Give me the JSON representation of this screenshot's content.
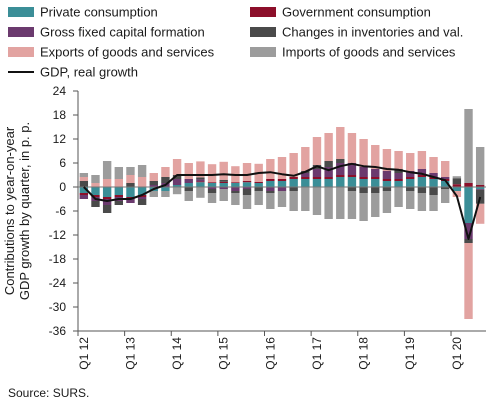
{
  "source_text": "Source: SURS.",
  "chart_data": {
    "type": "bar",
    "stacked": true,
    "ylabel_lines": [
      "Contributions to year-on-year",
      "GDP growth by quarter, in p. p."
    ],
    "xlabel": "",
    "ylim": [
      -36,
      24
    ],
    "yticks": [
      24,
      18,
      12,
      6,
      0,
      -6,
      -12,
      -18,
      -24,
      -30,
      -36
    ],
    "x_tick_labels": [
      {
        "label": "Q1 12",
        "index": 0
      },
      {
        "label": "Q1 13",
        "index": 4
      },
      {
        "label": "Q1 14",
        "index": 8
      },
      {
        "label": "Q1 15",
        "index": 12
      },
      {
        "label": "Q1 16",
        "index": 16
      },
      {
        "label": "Q1 17",
        "index": 20
      },
      {
        "label": "Q1 18",
        "index": 24
      },
      {
        "label": "Q1 19",
        "index": 28
      },
      {
        "label": "Q1 20",
        "index": 32
      }
    ],
    "categories": [
      "2012Q1",
      "2012Q2",
      "2012Q3",
      "2012Q4",
      "2013Q1",
      "2013Q2",
      "2013Q3",
      "2013Q4",
      "2014Q1",
      "2014Q2",
      "2014Q3",
      "2014Q4",
      "2015Q1",
      "2015Q2",
      "2015Q3",
      "2015Q4",
      "2016Q1",
      "2016Q2",
      "2016Q3",
      "2016Q4",
      "2017Q1",
      "2017Q2",
      "2017Q3",
      "2017Q4",
      "2018Q1",
      "2018Q2",
      "2018Q3",
      "2018Q4",
      "2019Q1",
      "2019Q2",
      "2019Q3",
      "2019Q4",
      "2020Q1",
      "2020Q2",
      "2020Q3"
    ],
    "legend_position": "top",
    "series": [
      {
        "name": "Private consumption",
        "color": "#3b8e97",
        "values": [
          -1.5,
          -2,
          -2.5,
          -2,
          -2.5,
          -2,
          -1,
          -1,
          0.5,
          1,
          1.2,
          1,
          1,
          1,
          1.2,
          1,
          1.5,
          1.5,
          2,
          2,
          2,
          2,
          2.5,
          2.5,
          2,
          2,
          1.5,
          1.5,
          2,
          2.5,
          2,
          1.5,
          -1,
          -9,
          -0.5
        ]
      },
      {
        "name": "Government consumption",
        "color": "#8c0f2a",
        "values": [
          -0.5,
          -0.5,
          -0.5,
          -0.5,
          -0.5,
          -0.5,
          0,
          0,
          0,
          0,
          0.2,
          0.2,
          0.3,
          0.2,
          0.3,
          0.3,
          0.5,
          0.5,
          0.5,
          0.5,
          0.5,
          0.5,
          0.5,
          0.5,
          0.5,
          0.5,
          0.5,
          0.5,
          0.5,
          0.5,
          0.5,
          0.5,
          0.7,
          1,
          0.5
        ]
      },
      {
        "name": "Gross fixed capital formation",
        "color": "#6b3a6e",
        "values": [
          -1,
          -1,
          -1.5,
          -1,
          -1,
          -0.5,
          0.5,
          1,
          1.5,
          1,
          0.5,
          -0.5,
          -0.5,
          -1,
          -0.5,
          0,
          -1,
          -1,
          0,
          1,
          2,
          2.5,
          3,
          3,
          2.5,
          2,
          2,
          1.5,
          1.5,
          1.5,
          1,
          0.5,
          0,
          -4,
          -0.2
        ]
      },
      {
        "name": "Changes in inventories and val.",
        "color": "#4a4a4a",
        "values": [
          1.5,
          -1.5,
          -2,
          -1,
          1,
          -1.5,
          1,
          1.5,
          1,
          -1,
          0.5,
          -1,
          0.5,
          -0.5,
          -1.5,
          -1,
          -0.5,
          0,
          -1,
          0.5,
          1,
          1.5,
          1,
          -1,
          -1.5,
          -1.5,
          -1,
          1,
          -1,
          -1.5,
          -2,
          -0.5,
          1.5,
          -1,
          -3.5
        ]
      },
      {
        "name": "Exports of goods and services",
        "color": "#e2a3a1",
        "values": [
          1,
          1,
          2,
          2,
          2,
          2.5,
          2,
          2.5,
          4,
          4,
          4,
          4.5,
          4.5,
          4,
          4.5,
          4.5,
          5,
          5.5,
          6,
          6,
          7,
          7,
          8,
          7.5,
          7,
          6,
          5.5,
          4.5,
          4.5,
          4.5,
          4,
          4,
          -1.5,
          -19,
          -5
        ]
      },
      {
        "name": "Imports of goods and services",
        "color": "#9c9c9c",
        "values": [
          1,
          2,
          4.5,
          3,
          2,
          3,
          -1.5,
          -1.5,
          -1.8,
          -2.5,
          -2.7,
          -2.5,
          -3,
          -3,
          -3.5,
          -3.5,
          -4,
          -4,
          -5,
          -6,
          -7,
          -8,
          -8,
          -7,
          -7,
          -6,
          -5.5,
          -5,
          -4.5,
          -4.5,
          -4,
          -3.5,
          0.5,
          18.5,
          9.5
        ]
      }
    ],
    "line_series": {
      "name": "GDP, real growth",
      "color": "#111111",
      "values": [
        0,
        -3,
        -3.5,
        -3,
        -3,
        -2,
        -0.5,
        0.5,
        3,
        3,
        3,
        3,
        3.2,
        3,
        3,
        3.5,
        3.7,
        3.2,
        2.8,
        3.8,
        5.2,
        4.2,
        5.2,
        5.8,
        5.2,
        5,
        4.5,
        4.3,
        3.7,
        3.3,
        2.5,
        1.7,
        -2.3,
        -13,
        -2.5
      ]
    }
  }
}
